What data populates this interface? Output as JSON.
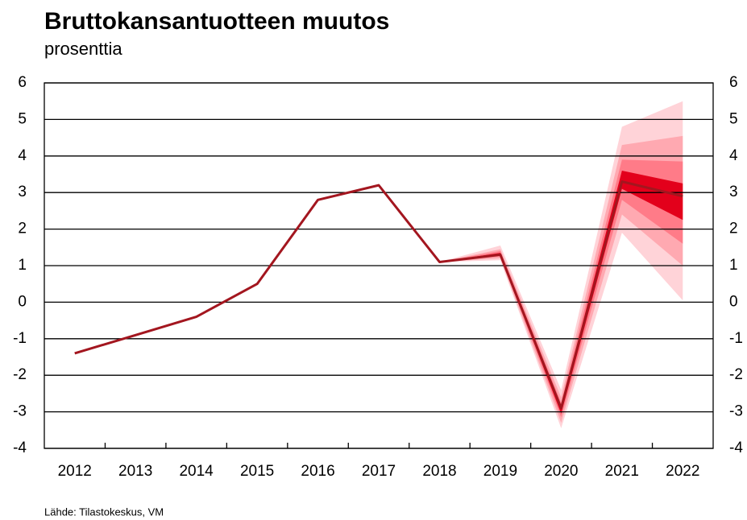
{
  "chart_data": {
    "type": "line",
    "title": "Bruttokansantuotteen muutos",
    "subtitle": "prosenttia",
    "source": "Lähde: Tilastokeskus, VM",
    "categories": [
      "2012",
      "2013",
      "2014",
      "2015",
      "2016",
      "2017",
      "2018",
      "2019",
      "2020",
      "2021",
      "2022"
    ],
    "series": [
      {
        "color": "#a3161f",
        "values": [
          -1.4,
          -0.9,
          -0.4,
          0.5,
          2.8,
          3.2,
          1.1,
          1.3,
          -2.9,
          3.3,
          2.9
        ]
      }
    ],
    "fan": [
      {
        "color": "#ffd3d8",
        "low": [
          null,
          null,
          null,
          null,
          null,
          null,
          1.1,
          1.15,
          -3.45,
          1.9,
          0.05
        ],
        "high": [
          null,
          null,
          null,
          null,
          null,
          null,
          1.1,
          1.55,
          -2.4,
          4.8,
          5.5
        ]
      },
      {
        "color": "#ffa9b1",
        "low": [
          null,
          null,
          null,
          null,
          null,
          null,
          1.1,
          1.2,
          -3.3,
          2.4,
          1.0
        ],
        "high": [
          null,
          null,
          null,
          null,
          null,
          null,
          1.1,
          1.45,
          -2.6,
          4.3,
          4.55
        ]
      },
      {
        "color": "#ff7b88",
        "low": [
          null,
          null,
          null,
          null,
          null,
          null,
          1.1,
          1.25,
          -3.15,
          2.8,
          1.6
        ],
        "high": [
          null,
          null,
          null,
          null,
          null,
          null,
          1.1,
          1.4,
          -2.75,
          3.9,
          3.85
        ]
      },
      {
        "color": "#e3001b",
        "low": [
          null,
          null,
          null,
          null,
          null,
          null,
          1.1,
          1.28,
          -3.05,
          3.1,
          2.25
        ],
        "high": [
          null,
          null,
          null,
          null,
          null,
          null,
          1.1,
          1.35,
          -2.85,
          3.6,
          3.25
        ]
      }
    ],
    "ylim": [
      -4,
      6
    ],
    "yticks": [
      -4,
      -3,
      -2,
      -1,
      0,
      1,
      2,
      3,
      4,
      5,
      6
    ],
    "grid": true
  }
}
